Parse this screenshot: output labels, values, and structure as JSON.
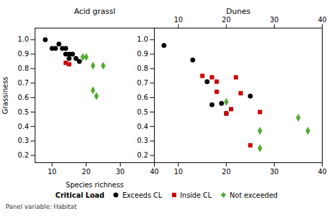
{
  "chart_data": [
    {
      "type": "scatter",
      "title": "Acid grassl",
      "xlabel": "Species richness",
      "ylabel": "Grassiness",
      "xlim": [
        5,
        40
      ],
      "xticks": [
        10,
        20,
        30,
        40
      ],
      "ylim": [
        0.15,
        1.08
      ],
      "yticks": [
        0.2,
        0.3,
        0.4,
        0.5,
        0.6,
        0.7,
        0.8,
        0.9,
        {
          "value": 1.0,
          "label": "1.0"
        }
      ],
      "annotations": [
        "Panel variable: Habitat"
      ],
      "series": [
        {
          "name": "Exceeds CL",
          "color": "#000000",
          "marker": "circle",
          "x": [
            8,
            10,
            11,
            12,
            13,
            14,
            14,
            15,
            15,
            16,
            17,
            18
          ],
          "values": [
            1.0,
            0.94,
            0.94,
            0.97,
            0.94,
            0.9,
            0.94,
            0.9,
            0.87,
            0.9,
            0.87,
            0.85
          ]
        },
        {
          "name": "Inside CL",
          "color": "#cc0000",
          "marker": "square",
          "x": [
            14,
            15
          ],
          "values": [
            0.84,
            0.83
          ]
        },
        {
          "name": "Not exceeded",
          "color": "#55aa33",
          "marker": "diamond",
          "x": [
            19,
            20,
            22,
            22,
            23,
            25
          ],
          "values": [
            0.88,
            0.88,
            0.82,
            0.65,
            0.61,
            0.82
          ]
        }
      ]
    },
    {
      "type": "scatter",
      "title": "Dunes",
      "xlim": [
        5,
        40
      ],
      "xticks": [
        10,
        20,
        30,
        40
      ],
      "ylim": [
        0.15,
        1.08
      ],
      "yticks": [
        0.2,
        0.3,
        0.4,
        0.5,
        0.6,
        0.7,
        0.8,
        0.9,
        {
          "value": 1.0,
          "label": "1.0"
        }
      ],
      "tick_labels": "x",
      "legend": "bottom",
      "legend_title": "Critical Load",
      "series": [
        {
          "name": "Exceeds CL",
          "color": "#000000",
          "marker": "circle",
          "x": [
            7,
            13,
            16,
            17,
            19,
            20,
            25
          ],
          "values": [
            0.96,
            0.86,
            0.71,
            0.55,
            0.56,
            0.49,
            0.61
          ]
        },
        {
          "name": "Inside CL",
          "color": "#cc0000",
          "marker": "square",
          "x": [
            15,
            17,
            18,
            18,
            20,
            21,
            22,
            23,
            25,
            27
          ],
          "values": [
            0.75,
            0.74,
            0.71,
            0.64,
            0.49,
            0.52,
            0.74,
            0.63,
            0.27,
            0.5
          ]
        },
        {
          "name": "Not exceeded",
          "color": "#55aa33",
          "marker": "diamond",
          "x": [
            20,
            27,
            27,
            35,
            37
          ],
          "values": [
            0.57,
            0.37,
            0.25,
            0.46,
            0.37
          ]
        }
      ]
    }
  ]
}
